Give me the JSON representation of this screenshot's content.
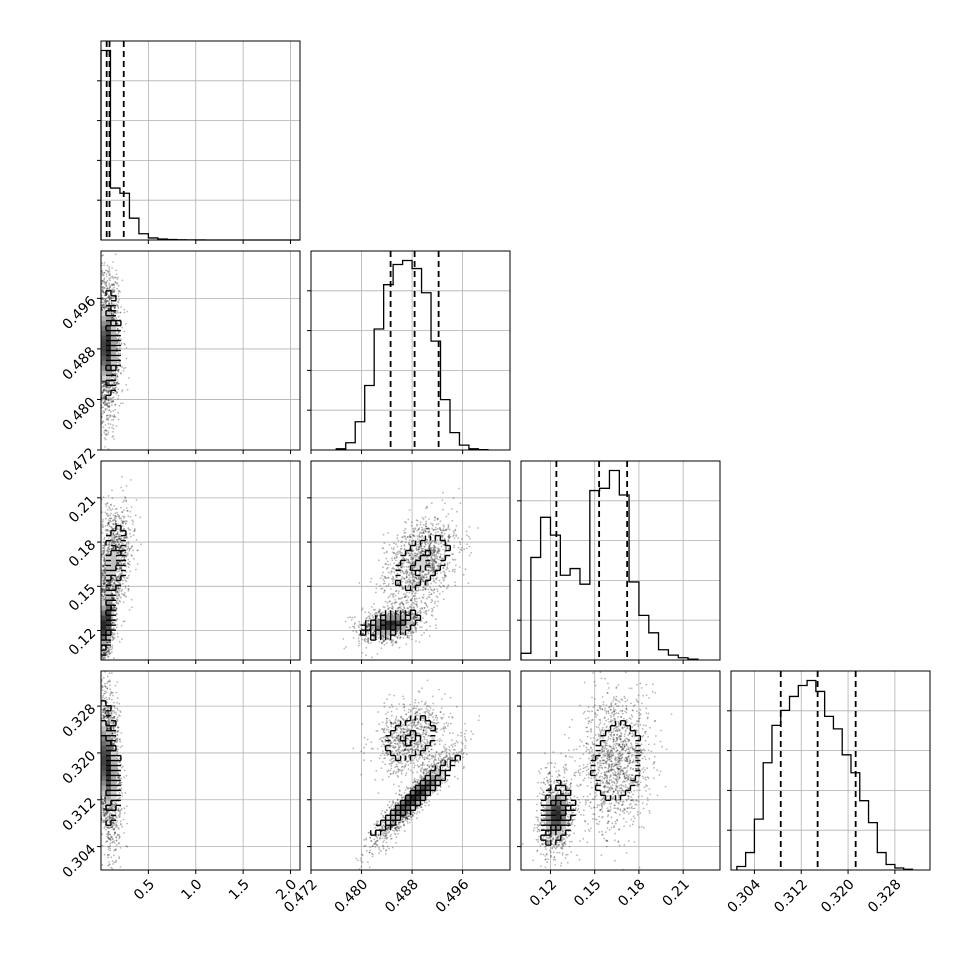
{
  "chart_data": {
    "type": "corner",
    "grid": true,
    "xlabel": "",
    "ylabel": "",
    "parameters": [
      {
        "ticks": [
          0.5,
          1.0,
          1.5,
          2.0
        ],
        "tick_labels": [
          "0.5",
          "1.0",
          "1.5",
          "2.0"
        ],
        "lim": [
          0.0,
          2.1
        ],
        "hist_edges": [
          0.0,
          0.1,
          0.2,
          0.3,
          0.4,
          0.5,
          0.6,
          0.7,
          0.8,
          0.9,
          1.0,
          1.1,
          1.2,
          1.3,
          1.4,
          1.5,
          1.6,
          1.7,
          1.8,
          1.9,
          2.0,
          2.1
        ],
        "hist_counts": [
          3650,
          1000,
          900,
          420,
          120,
          40,
          18,
          8,
          4,
          2,
          1,
          0,
          0,
          0,
          0,
          0,
          0,
          0,
          0,
          0,
          0
        ],
        "quantiles": [
          0.06,
          0.09,
          0.24
        ]
      },
      {
        "ticks": [
          0.472,
          0.48,
          0.488,
          0.496
        ],
        "tick_labels": [
          "0.472",
          "0.480",
          "0.488",
          "0.496"
        ],
        "lim": [
          0.472,
          0.5035
        ],
        "hist_edges": [
          0.476,
          0.4775,
          0.479,
          0.4805,
          0.482,
          0.4835,
          0.485,
          0.4865,
          0.488,
          0.4895,
          0.491,
          0.4925,
          0.494,
          0.4955,
          0.497,
          0.4985,
          0.5
        ],
        "hist_counts": [
          30,
          180,
          700,
          1600,
          3000,
          4100,
          4600,
          4700,
          4500,
          3900,
          2700,
          1250,
          430,
          120,
          30,
          10
        ],
        "quantiles": [
          0.4846,
          0.4884,
          0.4922
        ]
      },
      {
        "ticks": [
          0.12,
          0.15,
          0.18,
          0.21
        ],
        "tick_labels": [
          "0.12",
          "0.15",
          "0.18",
          "0.21"
        ],
        "lim": [
          0.1,
          0.235
        ],
        "hist_edges": [
          0.1,
          0.1067,
          0.1133,
          0.12,
          0.1267,
          0.1333,
          0.14,
          0.1467,
          0.1533,
          0.16,
          0.1667,
          0.1733,
          0.18,
          0.1867,
          0.1933,
          0.2,
          0.2067,
          0.2133,
          0.22
        ],
        "hist_counts": [
          150,
          2300,
          3200,
          2800,
          1900,
          2050,
          1700,
          3800,
          3850,
          4250,
          3700,
          1750,
          1000,
          610,
          230,
          110,
          50,
          20
        ],
        "quantiles": [
          0.124,
          0.153,
          0.172
        ]
      },
      {
        "ticks": [
          0.304,
          0.312,
          0.32,
          0.328
        ],
        "tick_labels": [
          "0.304",
          "0.312",
          "0.320",
          "0.328"
        ],
        "lim": [
          0.3,
          0.334
        ],
        "hist_edges": [
          0.301,
          0.3025,
          0.304,
          0.3055,
          0.307,
          0.3085,
          0.31,
          0.3115,
          0.313,
          0.3145,
          0.316,
          0.3175,
          0.319,
          0.3205,
          0.322,
          0.3235,
          0.325,
          0.3265,
          0.328,
          0.3295,
          0.331
        ],
        "hist_counts": [
          70,
          350,
          1020,
          2150,
          2900,
          3200,
          3480,
          3700,
          3800,
          3580,
          3080,
          2830,
          2310,
          1950,
          1390,
          950,
          350,
          110,
          40,
          15
        ],
        "quantiles": [
          0.3085,
          0.3148,
          0.3213
        ]
      }
    ],
    "pairs": [
      {
        "x": 0,
        "y": 1,
        "blobs": [
          {
            "cx": 0.06,
            "cy": 0.4885,
            "sx": 0.07,
            "sy": 0.0045,
            "rho": 0.0,
            "w": 1.0
          }
        ]
      },
      {
        "x": 0,
        "y": 2,
        "blobs": [
          {
            "cx": 0.05,
            "cy": 0.125,
            "sx": 0.05,
            "sy": 0.012,
            "rho": 0.3,
            "w": 0.45
          },
          {
            "cx": 0.12,
            "cy": 0.166,
            "sx": 0.1,
            "sy": 0.015,
            "rho": 0.3,
            "w": 0.55
          }
        ]
      },
      {
        "x": 0,
        "y": 3,
        "blobs": [
          {
            "cx": 0.06,
            "cy": 0.318,
            "sx": 0.07,
            "sy": 0.0055,
            "rho": -0.3,
            "w": 1.0
          }
        ]
      },
      {
        "x": 1,
        "y": 2,
        "blobs": [
          {
            "cx": 0.4845,
            "cy": 0.124,
            "sx": 0.0025,
            "sy": 0.005,
            "rho": 0.3,
            "w": 0.45
          },
          {
            "cx": 0.4895,
            "cy": 0.166,
            "sx": 0.0028,
            "sy": 0.012,
            "rho": 0.35,
            "w": 0.55
          }
        ]
      },
      {
        "x": 1,
        "y": 3,
        "blobs": [
          {
            "cx": 0.4885,
            "cy": 0.3125,
            "sx": 0.0035,
            "sy": 0.0035,
            "rho": 0.93,
            "w": 0.6
          },
          {
            "cx": 0.4878,
            "cy": 0.3225,
            "sx": 0.0028,
            "sy": 0.0025,
            "rho": 0.2,
            "w": 0.4
          }
        ]
      },
      {
        "x": 2,
        "y": 3,
        "blobs": [
          {
            "cx": 0.124,
            "cy": 0.3095,
            "sx": 0.006,
            "sy": 0.0028,
            "rho": 0.1,
            "w": 0.42
          },
          {
            "cx": 0.165,
            "cy": 0.3185,
            "sx": 0.012,
            "sy": 0.005,
            "rho": 0.1,
            "w": 0.58
          }
        ]
      }
    ]
  }
}
